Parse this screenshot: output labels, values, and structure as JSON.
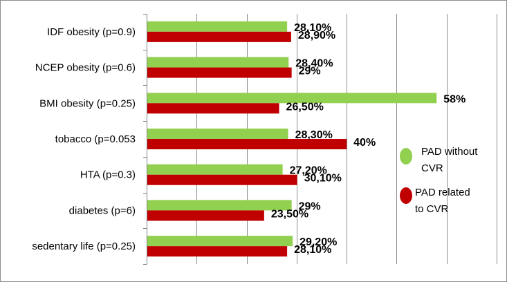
{
  "chart_data": {
    "type": "bar",
    "orientation": "horizontal",
    "categories": [
      "IDF obesity (p=0.9)",
      "NCEP obesity (p=0.6)",
      "BMI obesity (p=0.25)",
      "tobacco (p=0.053",
      "HTA (p=0.3)",
      "diabetes (p=6)",
      "sedentary life (p=0.25)"
    ],
    "series": [
      {
        "name_lines": [
          "PAD without",
          "CVR"
        ],
        "color": "#92d050",
        "values": [
          28.1,
          28.4,
          58,
          28.3,
          27.2,
          29,
          29.2
        ],
        "labels": [
          "28,10%",
          "28,40%",
          "58%",
          "28,30%",
          "27,20%",
          "29%",
          "29,20%"
        ]
      },
      {
        "name_lines": [
          "PAD  related",
          "to  CVR"
        ],
        "color": "#c00000",
        "values": [
          28.9,
          29,
          26.5,
          40,
          30.1,
          23.5,
          28.1
        ],
        "labels": [
          "28,90%",
          "29%",
          "26,50%",
          "40%",
          "30,10%",
          "23,50%",
          "28,10%"
        ]
      }
    ],
    "xlim": [
      0,
      70
    ],
    "grid": true,
    "legend_position": "right"
  }
}
